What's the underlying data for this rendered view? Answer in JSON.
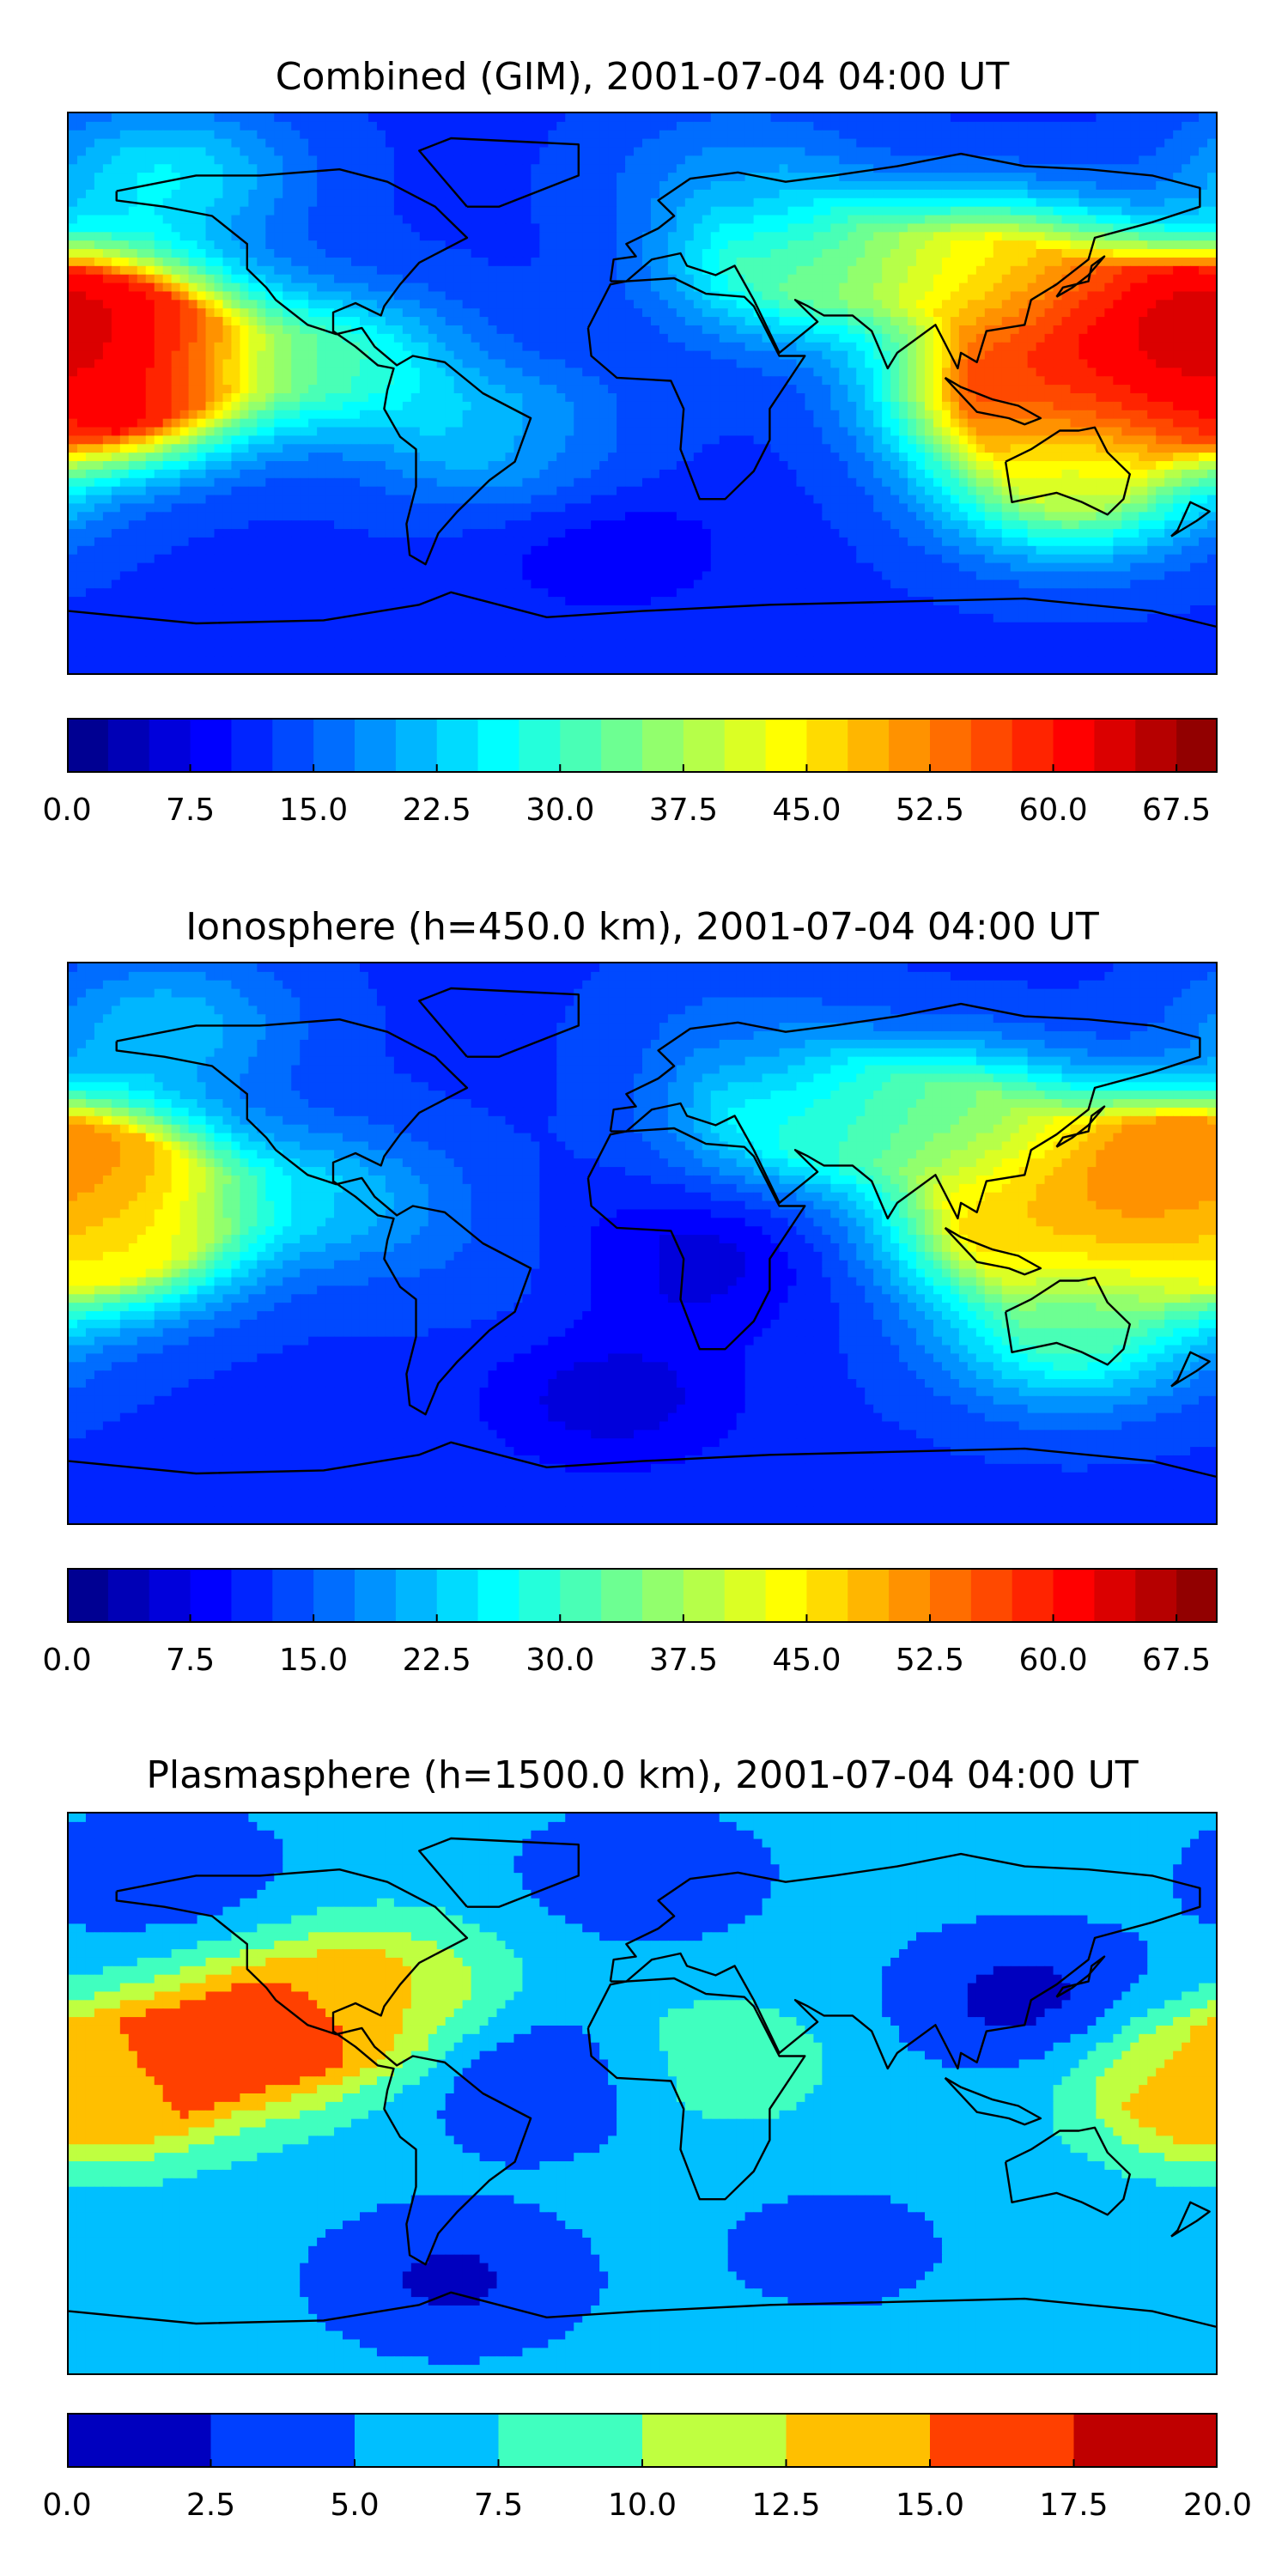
{
  "chart_data": [
    {
      "type": "heatmap",
      "title": "Combined (GIM), 2001-07-04 04:00 UT",
      "colorbar": {
        "range": [
          0,
          70
        ],
        "step": 2.5,
        "tick_labels": [
          "0.0",
          "7.5",
          "15.0",
          "22.5",
          "30.0",
          "37.5",
          "45.0",
          "52.5",
          "60.0",
          "67.5"
        ],
        "tick_values": [
          0,
          7.5,
          15,
          22.5,
          30,
          37.5,
          45,
          52.5,
          60,
          67.5
        ]
      },
      "blobs": [
        {
          "lon": -170,
          "lat": 20,
          "value": 63
        },
        {
          "lon": -170,
          "lat": 0,
          "value": 62
        },
        {
          "lon": 160,
          "lat": 20,
          "value": 66
        },
        {
          "lon": 120,
          "lat": 0,
          "value": 57
        },
        {
          "lon": 110,
          "lat": 40,
          "value": 45
        },
        {
          "lon": 50,
          "lat": 40,
          "value": 33
        },
        {
          "lon": -100,
          "lat": 10,
          "value": 30
        },
        {
          "lon": -45,
          "lat": -15,
          "value": 22
        },
        {
          "lon": 10,
          "lat": -10,
          "value": 12
        },
        {
          "lon": -10,
          "lat": -50,
          "value": 8
        },
        {
          "lon": 135,
          "lat": -30,
          "value": 38
        },
        {
          "lon": -150,
          "lat": 70,
          "value": 25
        },
        {
          "lon": 30,
          "lat": 70,
          "value": 18
        }
      ]
    },
    {
      "type": "heatmap",
      "title": "Ionosphere  (h=450.0 km), 2001-07-04 04:00 UT",
      "colorbar": {
        "range": [
          0,
          70
        ],
        "step": 2.5,
        "tick_labels": [
          "0.0",
          "7.5",
          "15.0",
          "22.5",
          "30.0",
          "37.5",
          "45.0",
          "52.5",
          "60.0",
          "67.5"
        ],
        "tick_values": [
          0,
          7.5,
          15,
          22.5,
          30,
          37.5,
          45,
          52.5,
          60,
          67.5
        ]
      },
      "blobs": [
        {
          "lon": -175,
          "lat": 20,
          "value": 52
        },
        {
          "lon": -170,
          "lat": 0,
          "value": 42
        },
        {
          "lon": 160,
          "lat": 20,
          "value": 56
        },
        {
          "lon": 120,
          "lat": 5,
          "value": 47
        },
        {
          "lon": 100,
          "lat": 40,
          "value": 35
        },
        {
          "lon": 50,
          "lat": 40,
          "value": 28
        },
        {
          "lon": -100,
          "lat": 15,
          "value": 22
        },
        {
          "lon": -45,
          "lat": -10,
          "value": 14
        },
        {
          "lon": 15,
          "lat": -5,
          "value": 6
        },
        {
          "lon": -10,
          "lat": -50,
          "value": 6
        },
        {
          "lon": 135,
          "lat": -30,
          "value": 30
        },
        {
          "lon": -150,
          "lat": 70,
          "value": 22
        },
        {
          "lon": 30,
          "lat": 70,
          "value": 15
        }
      ]
    },
    {
      "type": "heatmap",
      "title": "Plasmasphere (h=1500.0 km), 2001-07-04 04:00 UT",
      "colorbar": {
        "range": [
          0,
          20
        ],
        "step": 2.5,
        "tick_labels": [
          "0.0",
          "2.5",
          "5.0",
          "7.5",
          "10.0",
          "12.5",
          "15.0",
          "17.5",
          "20.0"
        ],
        "tick_values": [
          0,
          2.5,
          5,
          7.5,
          10,
          12.5,
          15,
          17.5,
          20
        ]
      },
      "blobs": [
        {
          "lon": -115,
          "lat": 20,
          "value": 18
        },
        {
          "lon": -165,
          "lat": 5,
          "value": 16
        },
        {
          "lon": -30,
          "lat": 5,
          "value": 1.5
        },
        {
          "lon": 120,
          "lat": 30,
          "value": 1.5
        },
        {
          "lon": 175,
          "lat": 0,
          "value": 12
        },
        {
          "lon": 20,
          "lat": 10,
          "value": 10
        },
        {
          "lon": -80,
          "lat": 35,
          "value": 12
        },
        {
          "lon": 0,
          "lat": 70,
          "value": 3
        },
        {
          "lon": -150,
          "lat": 70,
          "value": 3
        },
        {
          "lon": -60,
          "lat": -60,
          "value": 2
        },
        {
          "lon": 60,
          "lat": -50,
          "value": 4
        }
      ]
    }
  ]
}
